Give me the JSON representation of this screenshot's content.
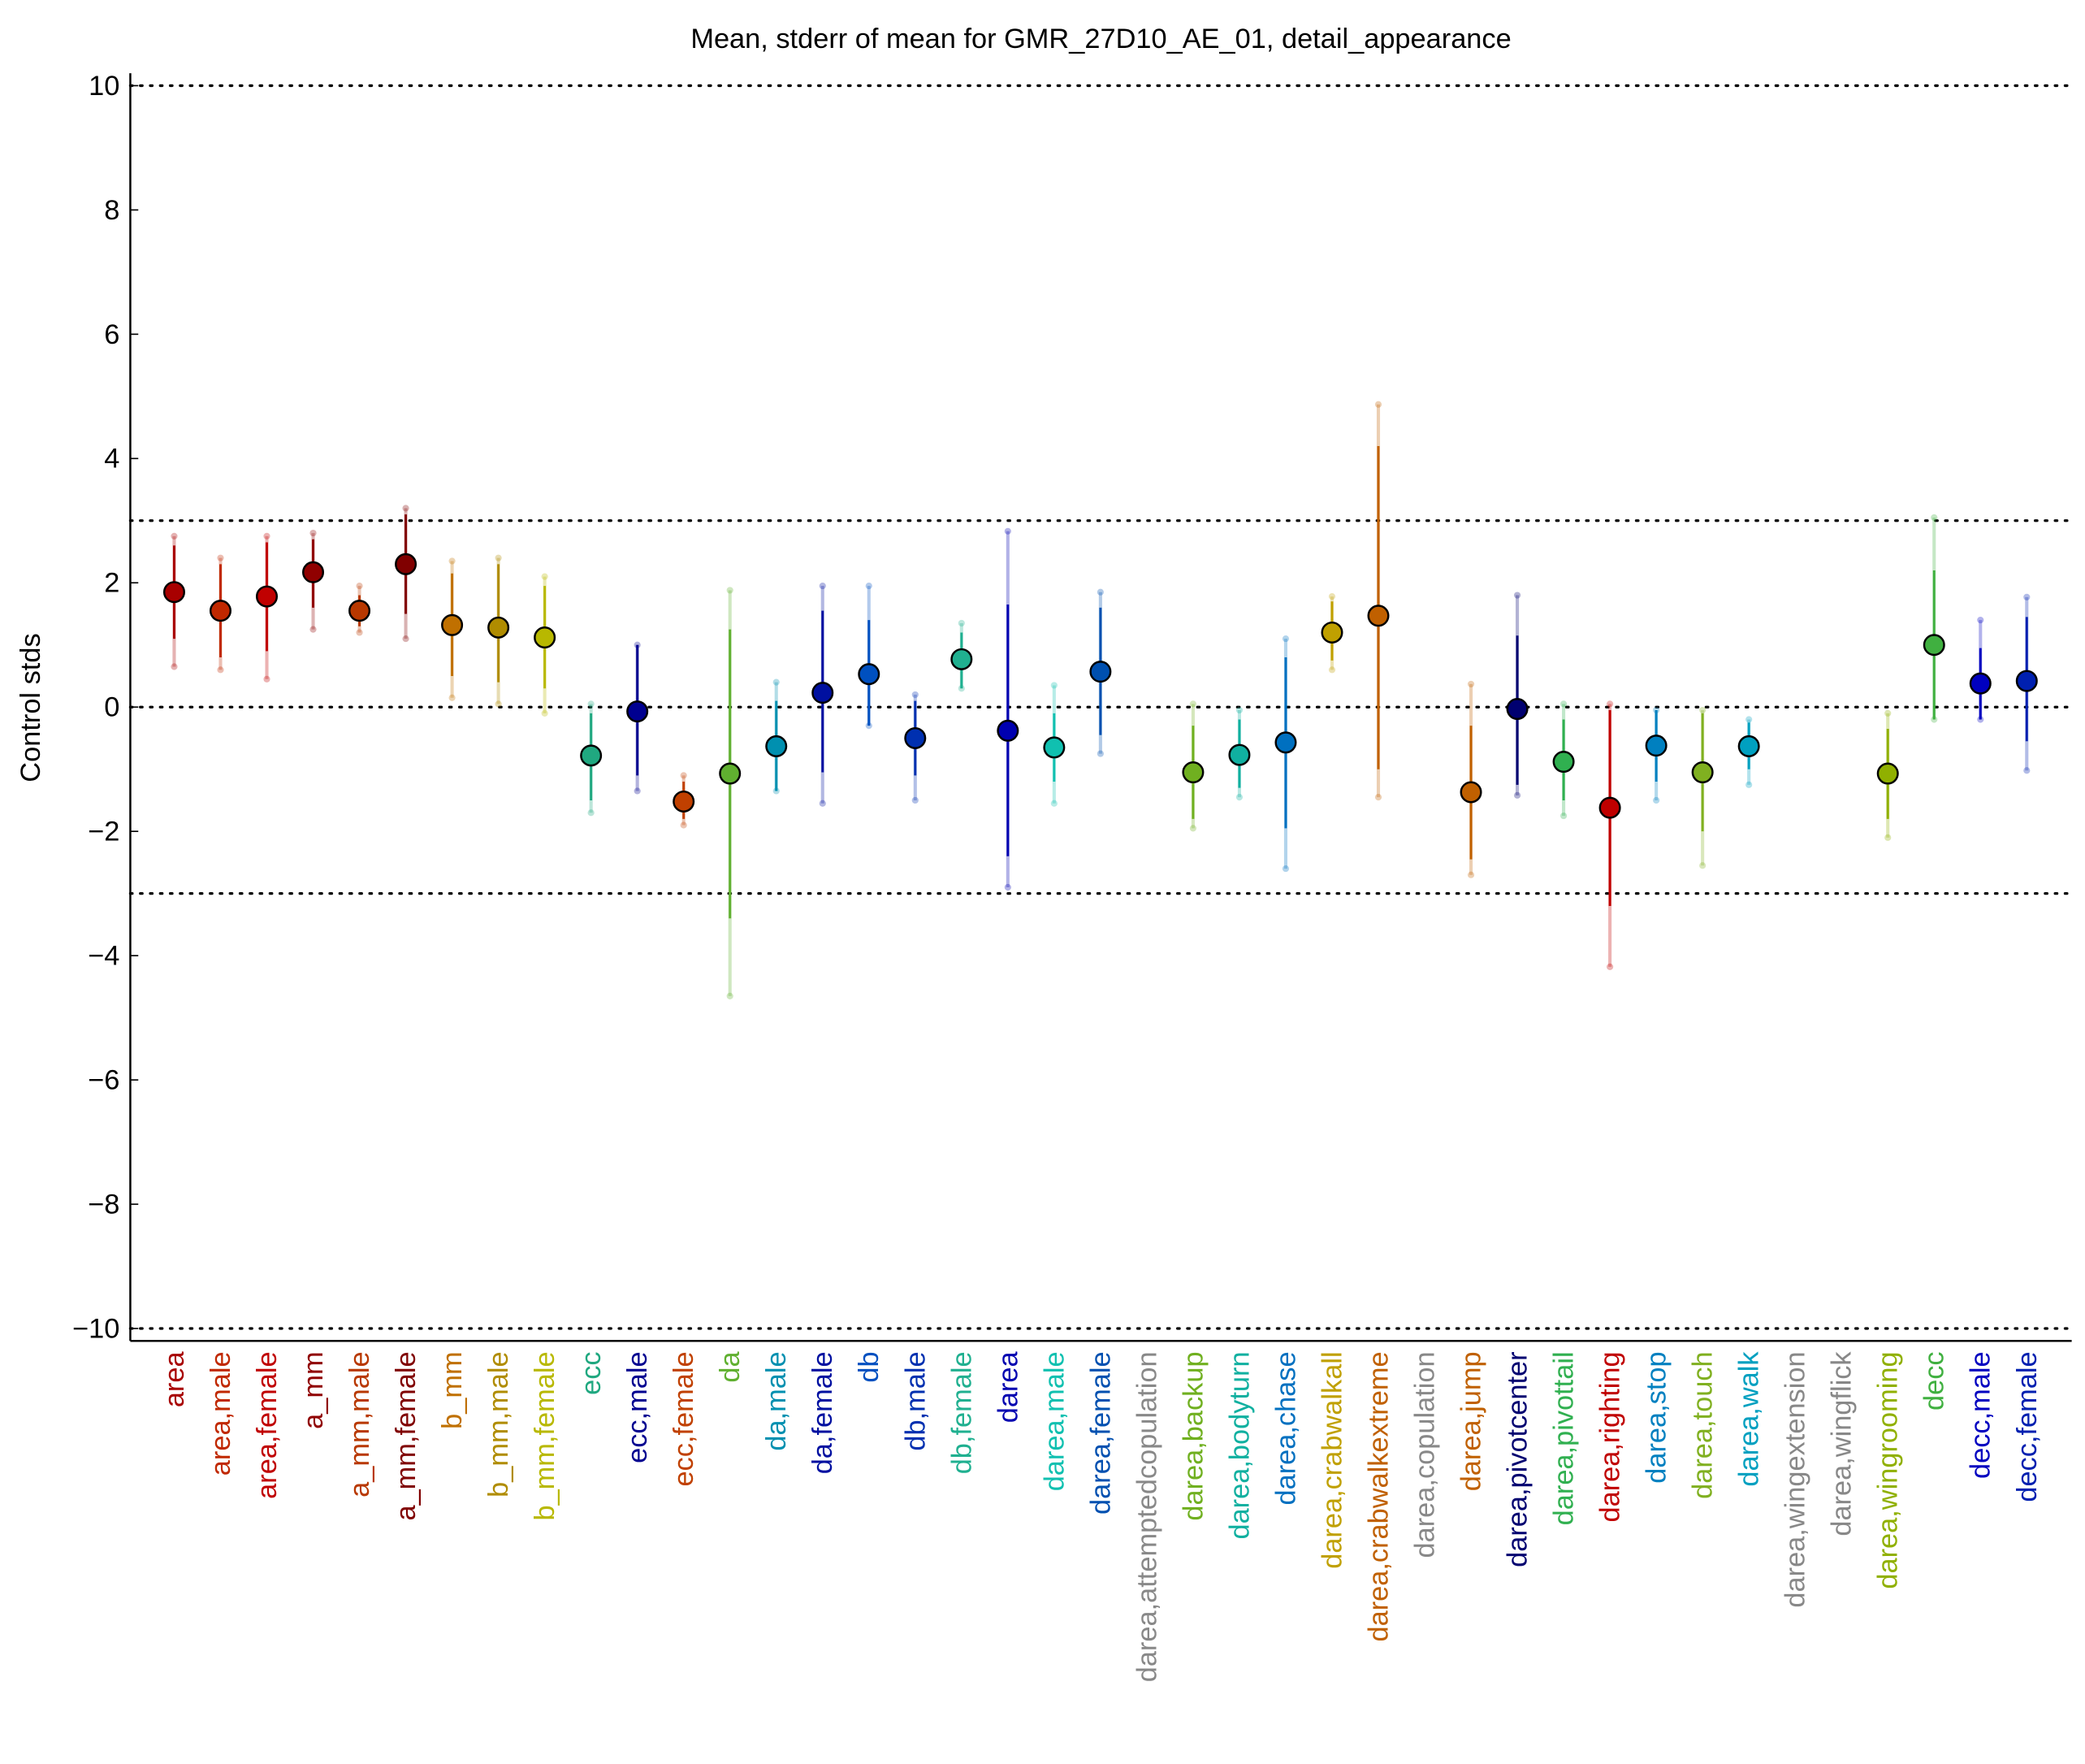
{
  "chart_data": {
    "type": "errorbar",
    "title": "Mean, stderr of mean for GMR_27D10_AE_01, detail_appearance",
    "y_label": "Control stds",
    "categories": [
      "area",
      "area,male",
      "area,female",
      "a_mm",
      "a_mm,male",
      "a_mm,female",
      "b_mm",
      "b_mm,male",
      "b_mm,female",
      "ecc",
      "ecc,male",
      "ecc,female",
      "da",
      "da,male",
      "da,female",
      "db",
      "db,male",
      "db,female",
      "darea",
      "darea,male",
      "darea,female",
      "darea,attemptedcopulation",
      "darea,backup",
      "darea,bodyturn",
      "darea,chase",
      "darea,crabwalkall",
      "darea,crabwalkextreme",
      "darea,copulation",
      "darea,jump",
      "darea,pivotcenter",
      "darea,pivottail",
      "darea,righting",
      "darea,stop",
      "darea,touch",
      "darea,walk",
      "darea,wingextension",
      "darea,wingflick",
      "darea,wingrooming",
      "decc",
      "decc,male",
      "decc,female"
    ],
    "colors": [
      "#a80000",
      "#c02800",
      "#c00000",
      "#900000",
      "#b83800",
      "#800000",
      "#c07000",
      "#b08c00",
      "#b8b800",
      "#20a880",
      "#000090",
      "#c04000",
      "#60b030",
      "#0090b0",
      "#0010a0",
      "#0050c0",
      "#0030b0",
      "#20b090",
      "#0000b0",
      "#10c0b0",
      "#0050b0",
      "#888888",
      "#70b020",
      "#10b0a0",
      "#0070c0",
      "#c0a000",
      "#c06000",
      "#888888",
      "#c06000",
      "#000070",
      "#30b050",
      "#c00000",
      "#0080c0",
      "#80b020",
      "#00a0c0",
      "#888888",
      "#888888",
      "#90b000",
      "#40b040",
      "#0000c0",
      "#0020b0"
    ],
    "values": [
      1.85,
      1.55,
      1.78,
      2.17,
      1.55,
      2.3,
      1.32,
      1.28,
      1.12,
      -0.78,
      -0.07,
      -1.52,
      -1.07,
      -0.63,
      0.23,
      0.53,
      -0.5,
      0.77,
      -0.38,
      -0.65,
      0.57,
      null,
      -1.05,
      -0.77,
      -0.57,
      1.2,
      1.47,
      null,
      -1.37,
      -0.03,
      -0.88,
      -1.62,
      -0.62,
      -1.05,
      -0.63,
      null,
      null,
      -1.07,
      1.0,
      0.38,
      0.42
    ],
    "err_low": [
      1.1,
      0.8,
      0.9,
      1.6,
      1.3,
      1.5,
      0.5,
      0.4,
      0.3,
      -1.5,
      -1.1,
      -1.8,
      -3.4,
      -1.35,
      -1.05,
      -0.3,
      -1.1,
      0.3,
      -2.4,
      -1.2,
      -0.45,
      null,
      -1.8,
      -1.3,
      -1.95,
      0.75,
      -1.0,
      null,
      -2.45,
      -1.25,
      -1.5,
      -3.2,
      -1.2,
      -2.0,
      -1.0,
      null,
      null,
      -1.8,
      -0.2,
      -0.2,
      -0.55
    ],
    "err_high": [
      2.6,
      2.3,
      2.65,
      2.7,
      1.8,
      3.1,
      2.15,
      2.3,
      1.95,
      -0.1,
      1.0,
      -1.2,
      1.25,
      0.1,
      1.55,
      1.4,
      0.1,
      1.2,
      1.65,
      -0.1,
      1.6,
      null,
      -0.3,
      -0.2,
      0.8,
      1.7,
      4.2,
      null,
      -0.3,
      1.15,
      -0.2,
      -0.05,
      -0.05,
      -0.1,
      -0.25,
      null,
      null,
      -0.35,
      2.2,
      0.95,
      1.45
    ],
    "range_low": [
      0.65,
      0.6,
      0.45,
      1.25,
      1.2,
      1.1,
      0.15,
      0.05,
      -0.1,
      -1.7,
      -1.35,
      -1.9,
      -4.65,
      -1.35,
      -1.55,
      -0.3,
      -1.5,
      0.3,
      -2.9,
      -1.55,
      -0.75,
      null,
      -1.95,
      -1.45,
      -2.6,
      0.6,
      -1.45,
      null,
      -2.7,
      -1.42,
      -1.75,
      -4.18,
      -1.5,
      -2.55,
      -1.25,
      null,
      null,
      -2.1,
      -0.2,
      -0.2,
      -1.02
    ],
    "range_high": [
      2.75,
      2.4,
      2.75,
      2.8,
      1.95,
      3.2,
      2.35,
      2.4,
      2.1,
      0.05,
      1.0,
      -1.1,
      1.88,
      0.4,
      1.95,
      1.95,
      0.2,
      1.35,
      2.83,
      0.35,
      1.85,
      null,
      0.05,
      -0.05,
      1.1,
      1.78,
      4.87,
      null,
      0.37,
      1.8,
      0.05,
      0.05,
      -0.05,
      -0.05,
      -0.2,
      null,
      null,
      -0.1,
      3.05,
      1.4,
      1.77
    ],
    "ylim": [
      -10.2,
      10.2
    ],
    "yticks": [
      {
        "value": -10,
        "label": "−10"
      },
      {
        "value": -8,
        "label": "−8"
      },
      {
        "value": -6,
        "label": "−6"
      },
      {
        "value": -4,
        "label": "−4"
      },
      {
        "value": -2,
        "label": "−2"
      },
      0,
      2,
      4,
      6,
      8,
      10
    ],
    "hlines": [
      10,
      3,
      0,
      -3,
      -10
    ]
  }
}
